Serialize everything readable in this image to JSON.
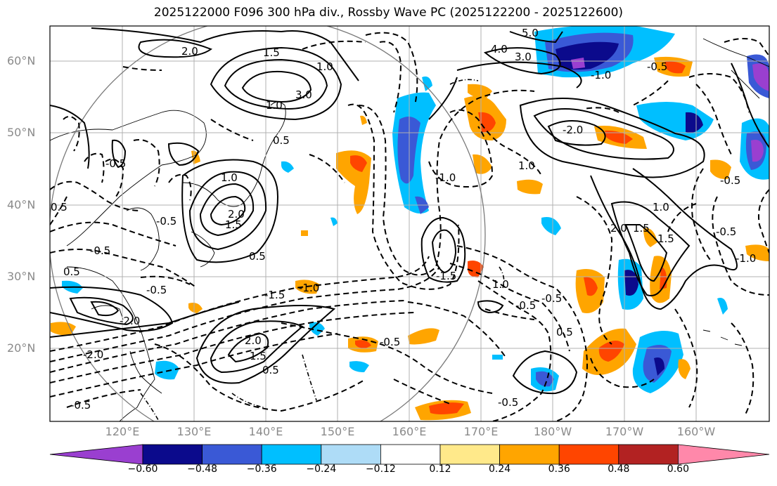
{
  "title": "2025122000 F096 300 hPa div., Rossby Wave PC (2025122200 - 2025122600)",
  "lat_labels": [
    "60°N",
    "50°N",
    "40°N",
    "30°N",
    "20°N"
  ],
  "lon_labels": [
    "120°E",
    "130°E",
    "140°E",
    "150°E",
    "160°E",
    "170°E",
    "180°W",
    "170°W",
    "160°W"
  ],
  "colorbar": {
    "ticks": [
      "−0.60",
      "−0.48",
      "−0.36",
      "−0.24",
      "−0.12",
      "0.12",
      "0.24",
      "0.36",
      "0.48",
      "0.60"
    ],
    "colors": [
      "#9a3fd0",
      "#0b0a8c",
      "#3a59d6",
      "#00bfff",
      "#aedcf7",
      "#ffffff",
      "#ffe98a",
      "#ffa500",
      "#ff4500",
      "#b22222",
      "#ff88aa"
    ]
  },
  "contour_labels": [
    "5.0",
    "4.0",
    "3.0",
    "3.0",
    "2.0",
    "1.5",
    "1.0",
    "1.0",
    "1.5",
    "1.0",
    "1.0",
    "-1.0",
    "-0.5",
    "-0.5",
    "-1.0",
    "-1.0",
    "2.0",
    "2.0",
    "1.5",
    "1.5",
    "0.5",
    "0.5",
    "0.5",
    "-0.5",
    "-0.5",
    "-0.5",
    "-0.5",
    "-0.5",
    "-0.5",
    "-0.5",
    "-0.5",
    "-2.0",
    "-2.0",
    "-1.5",
    "-1.0",
    "0.5",
    "-1.5",
    "-2.0",
    "-0.5",
    "0.5",
    "1.0",
    "1.5",
    "2.0",
    "1.0",
    "-0.5",
    "0.5"
  ]
}
